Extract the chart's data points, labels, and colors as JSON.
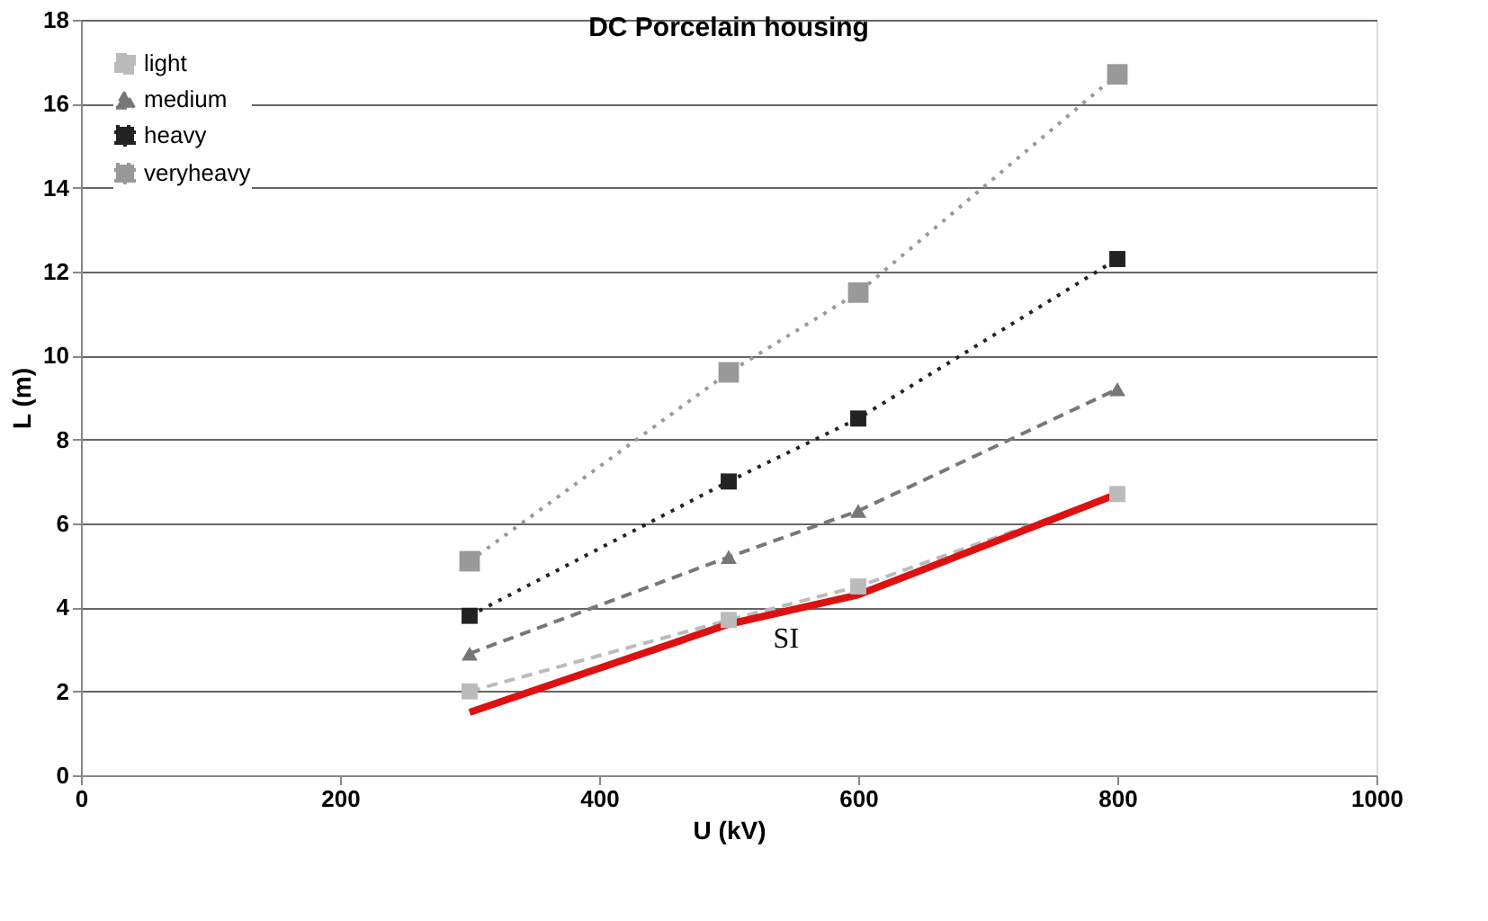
{
  "chart_data": {
    "type": "line",
    "title": "DC Porcelain housing",
    "xlabel": "U (kV)",
    "ylabel": "L (m)",
    "x": [
      300,
      500,
      600,
      800
    ],
    "series": [
      {
        "name": "light",
        "color": "#bbbbbb",
        "values": [
          2.0,
          3.7,
          4.5,
          6.7
        ],
        "marker": "square",
        "line_style": "dashed"
      },
      {
        "name": "medium",
        "color": "#777777",
        "values": [
          2.9,
          5.2,
          6.3,
          9.2
        ],
        "marker": "triangle",
        "line_style": "dashed"
      },
      {
        "name": "heavy",
        "color": "#222222",
        "values": [
          3.8,
          7.0,
          8.5,
          12.3
        ],
        "marker": "square",
        "line_style": "dotted"
      },
      {
        "name": "veryheavy",
        "color": "#999999",
        "values": [
          5.1,
          9.6,
          11.5,
          16.7
        ],
        "marker": "square",
        "line_style": "dotted"
      },
      {
        "color": "#dd1111",
        "values": [
          1.5,
          3.6,
          4.3,
          6.7
        ],
        "marker": "none",
        "line_style": "solid"
      }
    ],
    "annotations": [
      {
        "text": "SI",
        "x": 540,
        "y": 3.85
      }
    ],
    "xlim": [
      0,
      1000
    ],
    "xticks": [
      0,
      200,
      400,
      600,
      800,
      1000
    ],
    "ylim": [
      0,
      18
    ],
    "yticks": [
      0,
      2,
      4,
      6,
      8,
      10,
      12,
      14,
      16,
      18
    ],
    "grid": "y",
    "legend": "top left"
  }
}
